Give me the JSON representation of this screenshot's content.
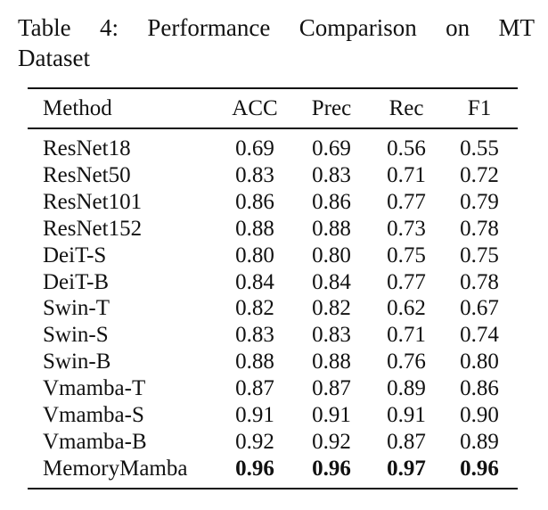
{
  "caption": {
    "line1": "Table 4:  Performance Comparison on MT",
    "line2": "Dataset"
  },
  "table": {
    "headers": {
      "method": "Method",
      "acc": "ACC",
      "prec": "Prec",
      "rec": "Rec",
      "f1": "F1"
    },
    "rows": [
      {
        "method": "ResNet18",
        "acc": "0.69",
        "prec": "0.69",
        "rec": "0.56",
        "f1": "0.55"
      },
      {
        "method": "ResNet50",
        "acc": "0.83",
        "prec": "0.83",
        "rec": "0.71",
        "f1": "0.72"
      },
      {
        "method": "ResNet101",
        "acc": "0.86",
        "prec": "0.86",
        "rec": "0.77",
        "f1": "0.79"
      },
      {
        "method": "ResNet152",
        "acc": "0.88",
        "prec": "0.88",
        "rec": "0.73",
        "f1": "0.78"
      },
      {
        "method": "DeiT-S",
        "acc": "0.80",
        "prec": "0.80",
        "rec": "0.75",
        "f1": "0.75"
      },
      {
        "method": "DeiT-B",
        "acc": "0.84",
        "prec": "0.84",
        "rec": "0.77",
        "f1": "0.78"
      },
      {
        "method": "Swin-T",
        "acc": "0.82",
        "prec": "0.82",
        "rec": "0.62",
        "f1": "0.67"
      },
      {
        "method": "Swin-S",
        "acc": "0.83",
        "prec": "0.83",
        "rec": "0.71",
        "f1": "0.74"
      },
      {
        "method": "Swin-B",
        "acc": "0.88",
        "prec": "0.88",
        "rec": "0.76",
        "f1": "0.80"
      },
      {
        "method": "Vmamba-T",
        "acc": "0.87",
        "prec": "0.87",
        "rec": "0.89",
        "f1": "0.86"
      },
      {
        "method": "Vmamba-S",
        "acc": "0.91",
        "prec": "0.91",
        "rec": "0.91",
        "f1": "0.90"
      },
      {
        "method": "Vmamba-B",
        "acc": "0.92",
        "prec": "0.92",
        "rec": "0.87",
        "f1": "0.89"
      },
      {
        "method": "MemoryMamba",
        "acc": "0.96",
        "prec": "0.96",
        "rec": "0.97",
        "f1": "0.96",
        "bold_metrics": true
      }
    ]
  }
}
